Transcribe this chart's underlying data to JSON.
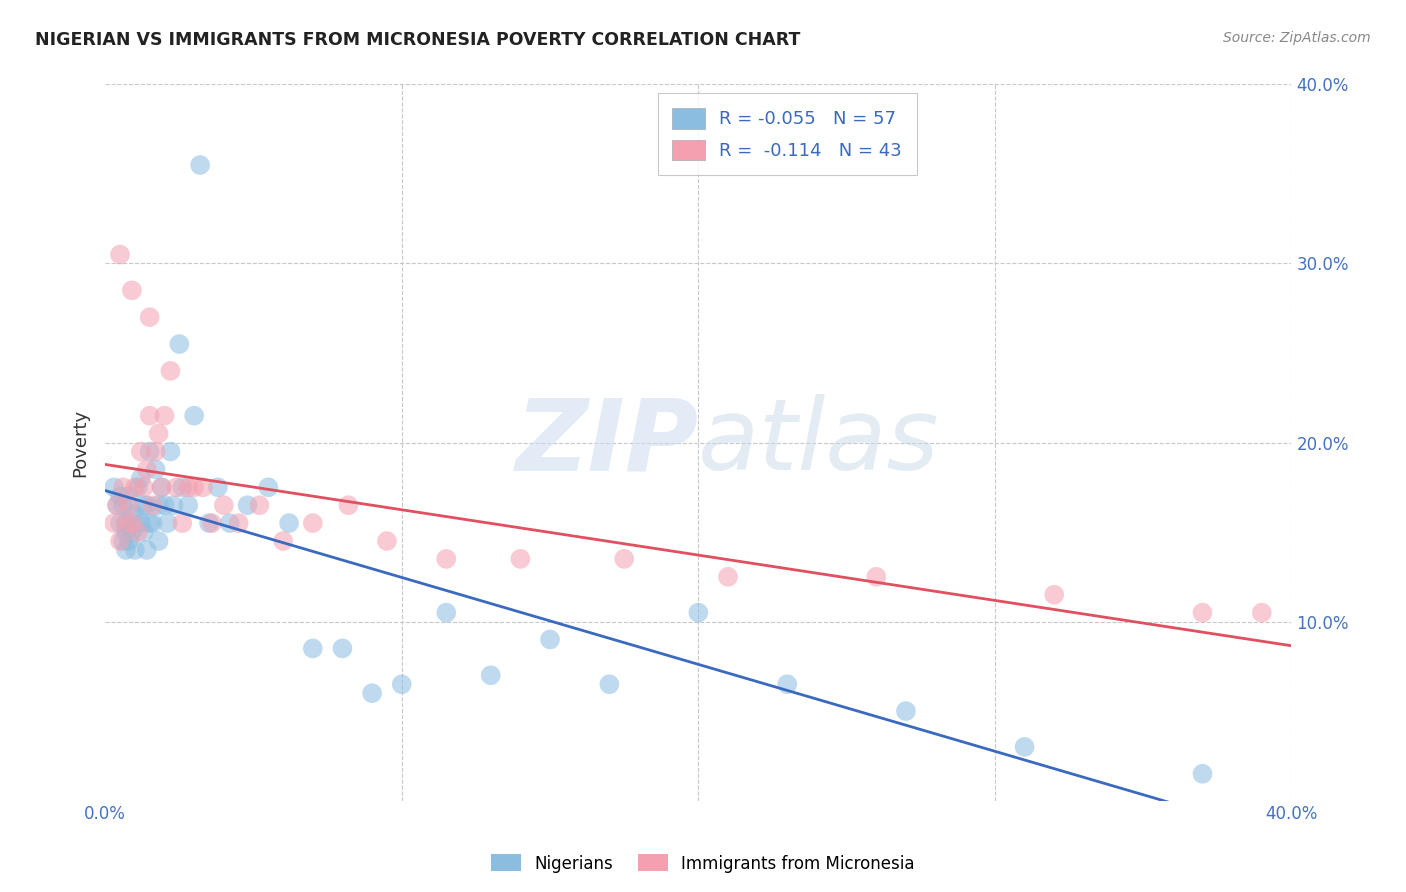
{
  "title": "NIGERIAN VS IMMIGRANTS FROM MICRONESIA POVERTY CORRELATION CHART",
  "source": "Source: ZipAtlas.com",
  "ylabel": "Poverty",
  "xlim": [
    0.0,
    0.4
  ],
  "ylim": [
    0.0,
    0.4
  ],
  "nigerian_color": "#8bbde0",
  "nigerian_edge_color": "#6aa0cc",
  "micronesia_color": "#f4a0b0",
  "micronesia_edge_color": "#e07080",
  "nigerian_line_color": "#3a6abf",
  "micronesia_line_color": "#e05060",
  "background_color": "#ffffff",
  "grid_color": "#c8c8c8",
  "watermark_zip": "ZIP",
  "watermark_atlas": "atlas",
  "legend_r1": "R = -0.055",
  "legend_n1": "N = 57",
  "legend_r2": " -0.114",
  "legend_n2": "N = 43",
  "nigerian_x": [
    0.003,
    0.004,
    0.005,
    0.005,
    0.006,
    0.006,
    0.007,
    0.007,
    0.007,
    0.008,
    0.008,
    0.009,
    0.009,
    0.01,
    0.01,
    0.011,
    0.012,
    0.012,
    0.013,
    0.013,
    0.014,
    0.014,
    0.015,
    0.015,
    0.016,
    0.017,
    0.018,
    0.018,
    0.019,
    0.02,
    0.021,
    0.022,
    0.023,
    0.025,
    0.026,
    0.028,
    0.03,
    0.032,
    0.035,
    0.038,
    0.042,
    0.048,
    0.055,
    0.062,
    0.07,
    0.08,
    0.09,
    0.1,
    0.115,
    0.13,
    0.15,
    0.17,
    0.2,
    0.23,
    0.27,
    0.31,
    0.37
  ],
  "nigerian_y": [
    0.175,
    0.165,
    0.17,
    0.155,
    0.165,
    0.145,
    0.155,
    0.15,
    0.14,
    0.17,
    0.145,
    0.16,
    0.15,
    0.16,
    0.14,
    0.175,
    0.18,
    0.155,
    0.165,
    0.15,
    0.165,
    0.14,
    0.195,
    0.155,
    0.155,
    0.185,
    0.165,
    0.145,
    0.175,
    0.165,
    0.155,
    0.195,
    0.165,
    0.255,
    0.175,
    0.165,
    0.215,
    0.355,
    0.155,
    0.175,
    0.155,
    0.165,
    0.175,
    0.155,
    0.085,
    0.085,
    0.06,
    0.065,
    0.105,
    0.07,
    0.09,
    0.065,
    0.105,
    0.065,
    0.05,
    0.03,
    0.015
  ],
  "micronesia_x": [
    0.003,
    0.004,
    0.005,
    0.006,
    0.007,
    0.008,
    0.009,
    0.01,
    0.011,
    0.012,
    0.013,
    0.014,
    0.015,
    0.016,
    0.017,
    0.018,
    0.019,
    0.02,
    0.022,
    0.024,
    0.026,
    0.028,
    0.03,
    0.033,
    0.036,
    0.04,
    0.045,
    0.052,
    0.06,
    0.07,
    0.082,
    0.095,
    0.115,
    0.14,
    0.175,
    0.21,
    0.26,
    0.32,
    0.37,
    0.39,
    0.005,
    0.009,
    0.015
  ],
  "micronesia_y": [
    0.155,
    0.165,
    0.145,
    0.175,
    0.155,
    0.165,
    0.155,
    0.175,
    0.15,
    0.195,
    0.175,
    0.185,
    0.215,
    0.165,
    0.195,
    0.205,
    0.175,
    0.215,
    0.24,
    0.175,
    0.155,
    0.175,
    0.175,
    0.175,
    0.155,
    0.165,
    0.155,
    0.165,
    0.145,
    0.155,
    0.165,
    0.145,
    0.135,
    0.135,
    0.135,
    0.125,
    0.125,
    0.115,
    0.105,
    0.105,
    0.305,
    0.285,
    0.27
  ]
}
